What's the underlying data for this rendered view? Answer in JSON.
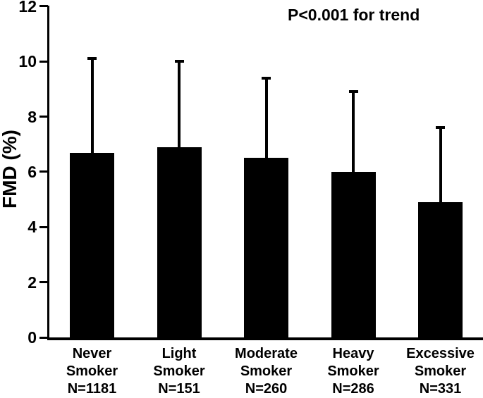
{
  "chart_data": {
    "type": "bar",
    "title": "",
    "annotation": "P<0.001 for trend",
    "ylabel": "FMD (%)",
    "xlabel": "",
    "ylim": [
      0,
      12
    ],
    "yticks": [
      0,
      2,
      4,
      6,
      8,
      10,
      12
    ],
    "grid": false,
    "legend": "none",
    "bar_color": "#000000",
    "background_color": "#ffffff",
    "error_bars": "upper SD whisker with cap",
    "categories": [
      "Never Smoker",
      "Light Smoker",
      "Moderate Smoker",
      "Heavy Smoker",
      "Excessive Smoker"
    ],
    "n_values": [
      1181,
      151,
      260,
      286,
      331
    ],
    "groups": [
      {
        "category": "Never Smoker",
        "label_lines": [
          "Never",
          "Smoker",
          "N=1181"
        ],
        "mean": 6.7,
        "sd": 3.4,
        "error_top": 10.1
      },
      {
        "category": "Light Smoker",
        "label_lines": [
          "Light",
          "Smoker",
          "N=151"
        ],
        "mean": 6.9,
        "sd": 3.1,
        "error_top": 10.0
      },
      {
        "category": "Moderate Smoker",
        "label_lines": [
          "Moderate",
          "Smoker",
          "N=260"
        ],
        "mean": 6.5,
        "sd": 2.9,
        "error_top": 9.4
      },
      {
        "category": "Heavy Smoker",
        "label_lines": [
          "Heavy",
          "Smoker",
          "N=286"
        ],
        "mean": 6.0,
        "sd": 2.9,
        "error_top": 8.9
      },
      {
        "category": "Excessive Smoker",
        "label_lines": [
          "Excessive",
          "Smoker",
          "N=331"
        ],
        "mean": 4.9,
        "sd": 2.7,
        "error_top": 7.6
      }
    ]
  }
}
